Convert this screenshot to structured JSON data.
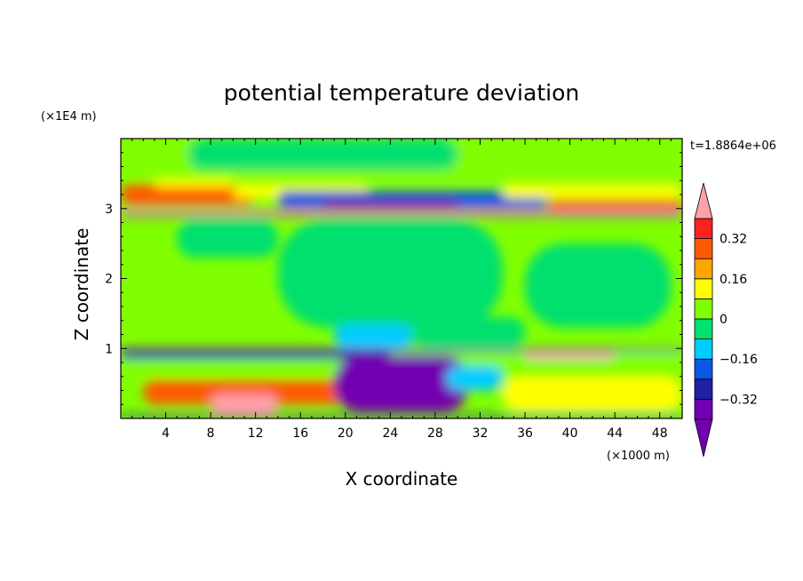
{
  "chart_data": {
    "type": "heatmap",
    "title": "potential temperature deviation",
    "xlabel": "X coordinate",
    "ylabel": "Z coordinate",
    "x_unit_label": "(×1000 m)",
    "y_unit_label": "(×1E4 m)",
    "time_label": "t=1.8864e+06",
    "xlim": [
      0,
      50
    ],
    "ylim": [
      0,
      4
    ],
    "x_ticks": [
      4,
      8,
      12,
      16,
      20,
      24,
      28,
      32,
      36,
      40,
      44,
      48
    ],
    "x_tick_labels": [
      "4",
      "8",
      "12",
      "16",
      "20",
      "24",
      "28",
      "32",
      "36",
      "40",
      "44",
      "48"
    ],
    "y_ticks": [
      1,
      2,
      3
    ],
    "y_tick_labels": [
      "1",
      "2",
      "3"
    ],
    "colorbar": {
      "levels": [
        -0.4,
        -0.32,
        -0.24,
        -0.16,
        -0.08,
        0,
        0.08,
        0.16,
        0.24,
        0.32,
        0.4
      ],
      "tick_values": [
        0.32,
        0.16,
        0,
        -0.16,
        -0.32
      ],
      "tick_labels": [
        "0.32",
        "0.16",
        "0",
        "−0.16",
        "−0.32"
      ],
      "colors": [
        "#7300b0",
        "#1f1fa8",
        "#0a56e6",
        "#00ccff",
        "#00e06e",
        "#80ff00",
        "#ffff00",
        "#ffa500",
        "#ff5a00",
        "#ff2020"
      ],
      "over_color": "#ffa0a8",
      "under_color": "#7300b0"
    },
    "background_color": "#80ff00",
    "regions": [
      {
        "x": [
          0,
          50
        ],
        "y": [
          3.45,
          4.0
        ],
        "value": 0.0
      },
      {
        "x": [
          6,
          30
        ],
        "y": [
          3.55,
          4.0
        ],
        "value": -0.05
      },
      {
        "x": [
          0,
          12
        ],
        "y": [
          3.05,
          3.35
        ],
        "value": 0.25
      },
      {
        "x": [
          3,
          10
        ],
        "y": [
          3.3,
          3.42
        ],
        "value": 0.12
      },
      {
        "x": [
          10,
          22
        ],
        "y": [
          3.15,
          3.35
        ],
        "value": 0.12
      },
      {
        "x": [
          14,
          38
        ],
        "y": [
          3.0,
          3.25
        ],
        "value": -0.18
      },
      {
        "x": [
          18,
          30
        ],
        "y": [
          3.0,
          3.12
        ],
        "value": -0.35
      },
      {
        "x": [
          34,
          50
        ],
        "y": [
          3.15,
          3.35
        ],
        "value": 0.1
      },
      {
        "x": [
          38,
          50
        ],
        "y": [
          2.98,
          3.12
        ],
        "value": 0.3
      },
      {
        "x": [
          0,
          50
        ],
        "y": [
          2.92,
          2.98
        ],
        "value": 0.45
      },
      {
        "x": [
          0,
          50
        ],
        "y": [
          2.88,
          2.92
        ],
        "value": -0.4
      },
      {
        "x": [
          14,
          34
        ],
        "y": [
          1.3,
          2.85
        ],
        "value": -0.02
      },
      {
        "x": [
          5,
          14
        ],
        "y": [
          2.3,
          2.85
        ],
        "value": -0.02
      },
      {
        "x": [
          36,
          49
        ],
        "y": [
          1.3,
          2.5
        ],
        "value": -0.02
      },
      {
        "x": [
          19,
          26
        ],
        "y": [
          1.0,
          1.35
        ],
        "value": -0.12
      },
      {
        "x": [
          26,
          36
        ],
        "y": [
          1.0,
          1.45
        ],
        "value": -0.02
      },
      {
        "x": [
          0,
          50
        ],
        "y": [
          0.95,
          1.0
        ],
        "value": -0.35
      },
      {
        "x": [
          0,
          50
        ],
        "y": [
          0.6,
          0.95
        ],
        "value": 0.05
      },
      {
        "x": [
          0,
          24
        ],
        "y": [
          0.85,
          0.95
        ],
        "value": -0.3
      },
      {
        "x": [
          2,
          20
        ],
        "y": [
          0.2,
          0.55
        ],
        "value": 0.25
      },
      {
        "x": [
          8,
          14
        ],
        "y": [
          0.05,
          0.35
        ],
        "value": 0.45
      },
      {
        "x": [
          19,
          31
        ],
        "y": [
          0.1,
          0.9
        ],
        "value": -0.4
      },
      {
        "x": [
          29,
          34
        ],
        "y": [
          0.4,
          0.75
        ],
        "value": -0.14
      },
      {
        "x": [
          34,
          50
        ],
        "y": [
          0.1,
          0.6
        ],
        "value": 0.15
      },
      {
        "x": [
          36,
          44
        ],
        "y": [
          0.85,
          0.95
        ],
        "value": 0.42
      },
      {
        "x": [
          0,
          50
        ],
        "y": [
          0.0,
          0.05
        ],
        "value": -0.25
      }
    ]
  }
}
